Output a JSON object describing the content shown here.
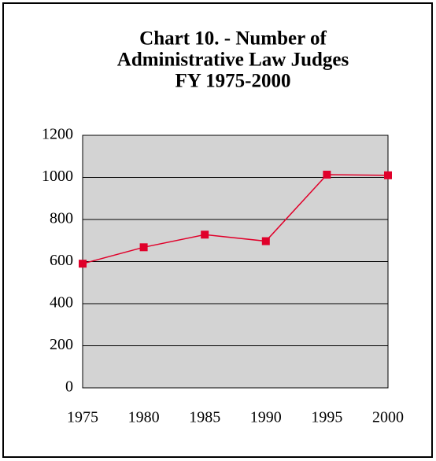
{
  "chart_data": {
    "type": "line",
    "title": [
      "Chart 10. - Number of",
      "Administrative Law Judges",
      "FY 1975-2000"
    ],
    "categories": [
      "1975",
      "1980",
      "1985",
      "1990",
      "1995",
      "2000"
    ],
    "series": [
      {
        "color": "#e0002a",
        "values": [
          590,
          668,
          728,
          697,
          1013,
          1010
        ]
      }
    ],
    "ylim": [
      0,
      1200
    ],
    "yticks": [
      0,
      200,
      400,
      600,
      800,
      1000,
      1200
    ],
    "grid": true,
    "plot_background": "#d3d3d3"
  }
}
